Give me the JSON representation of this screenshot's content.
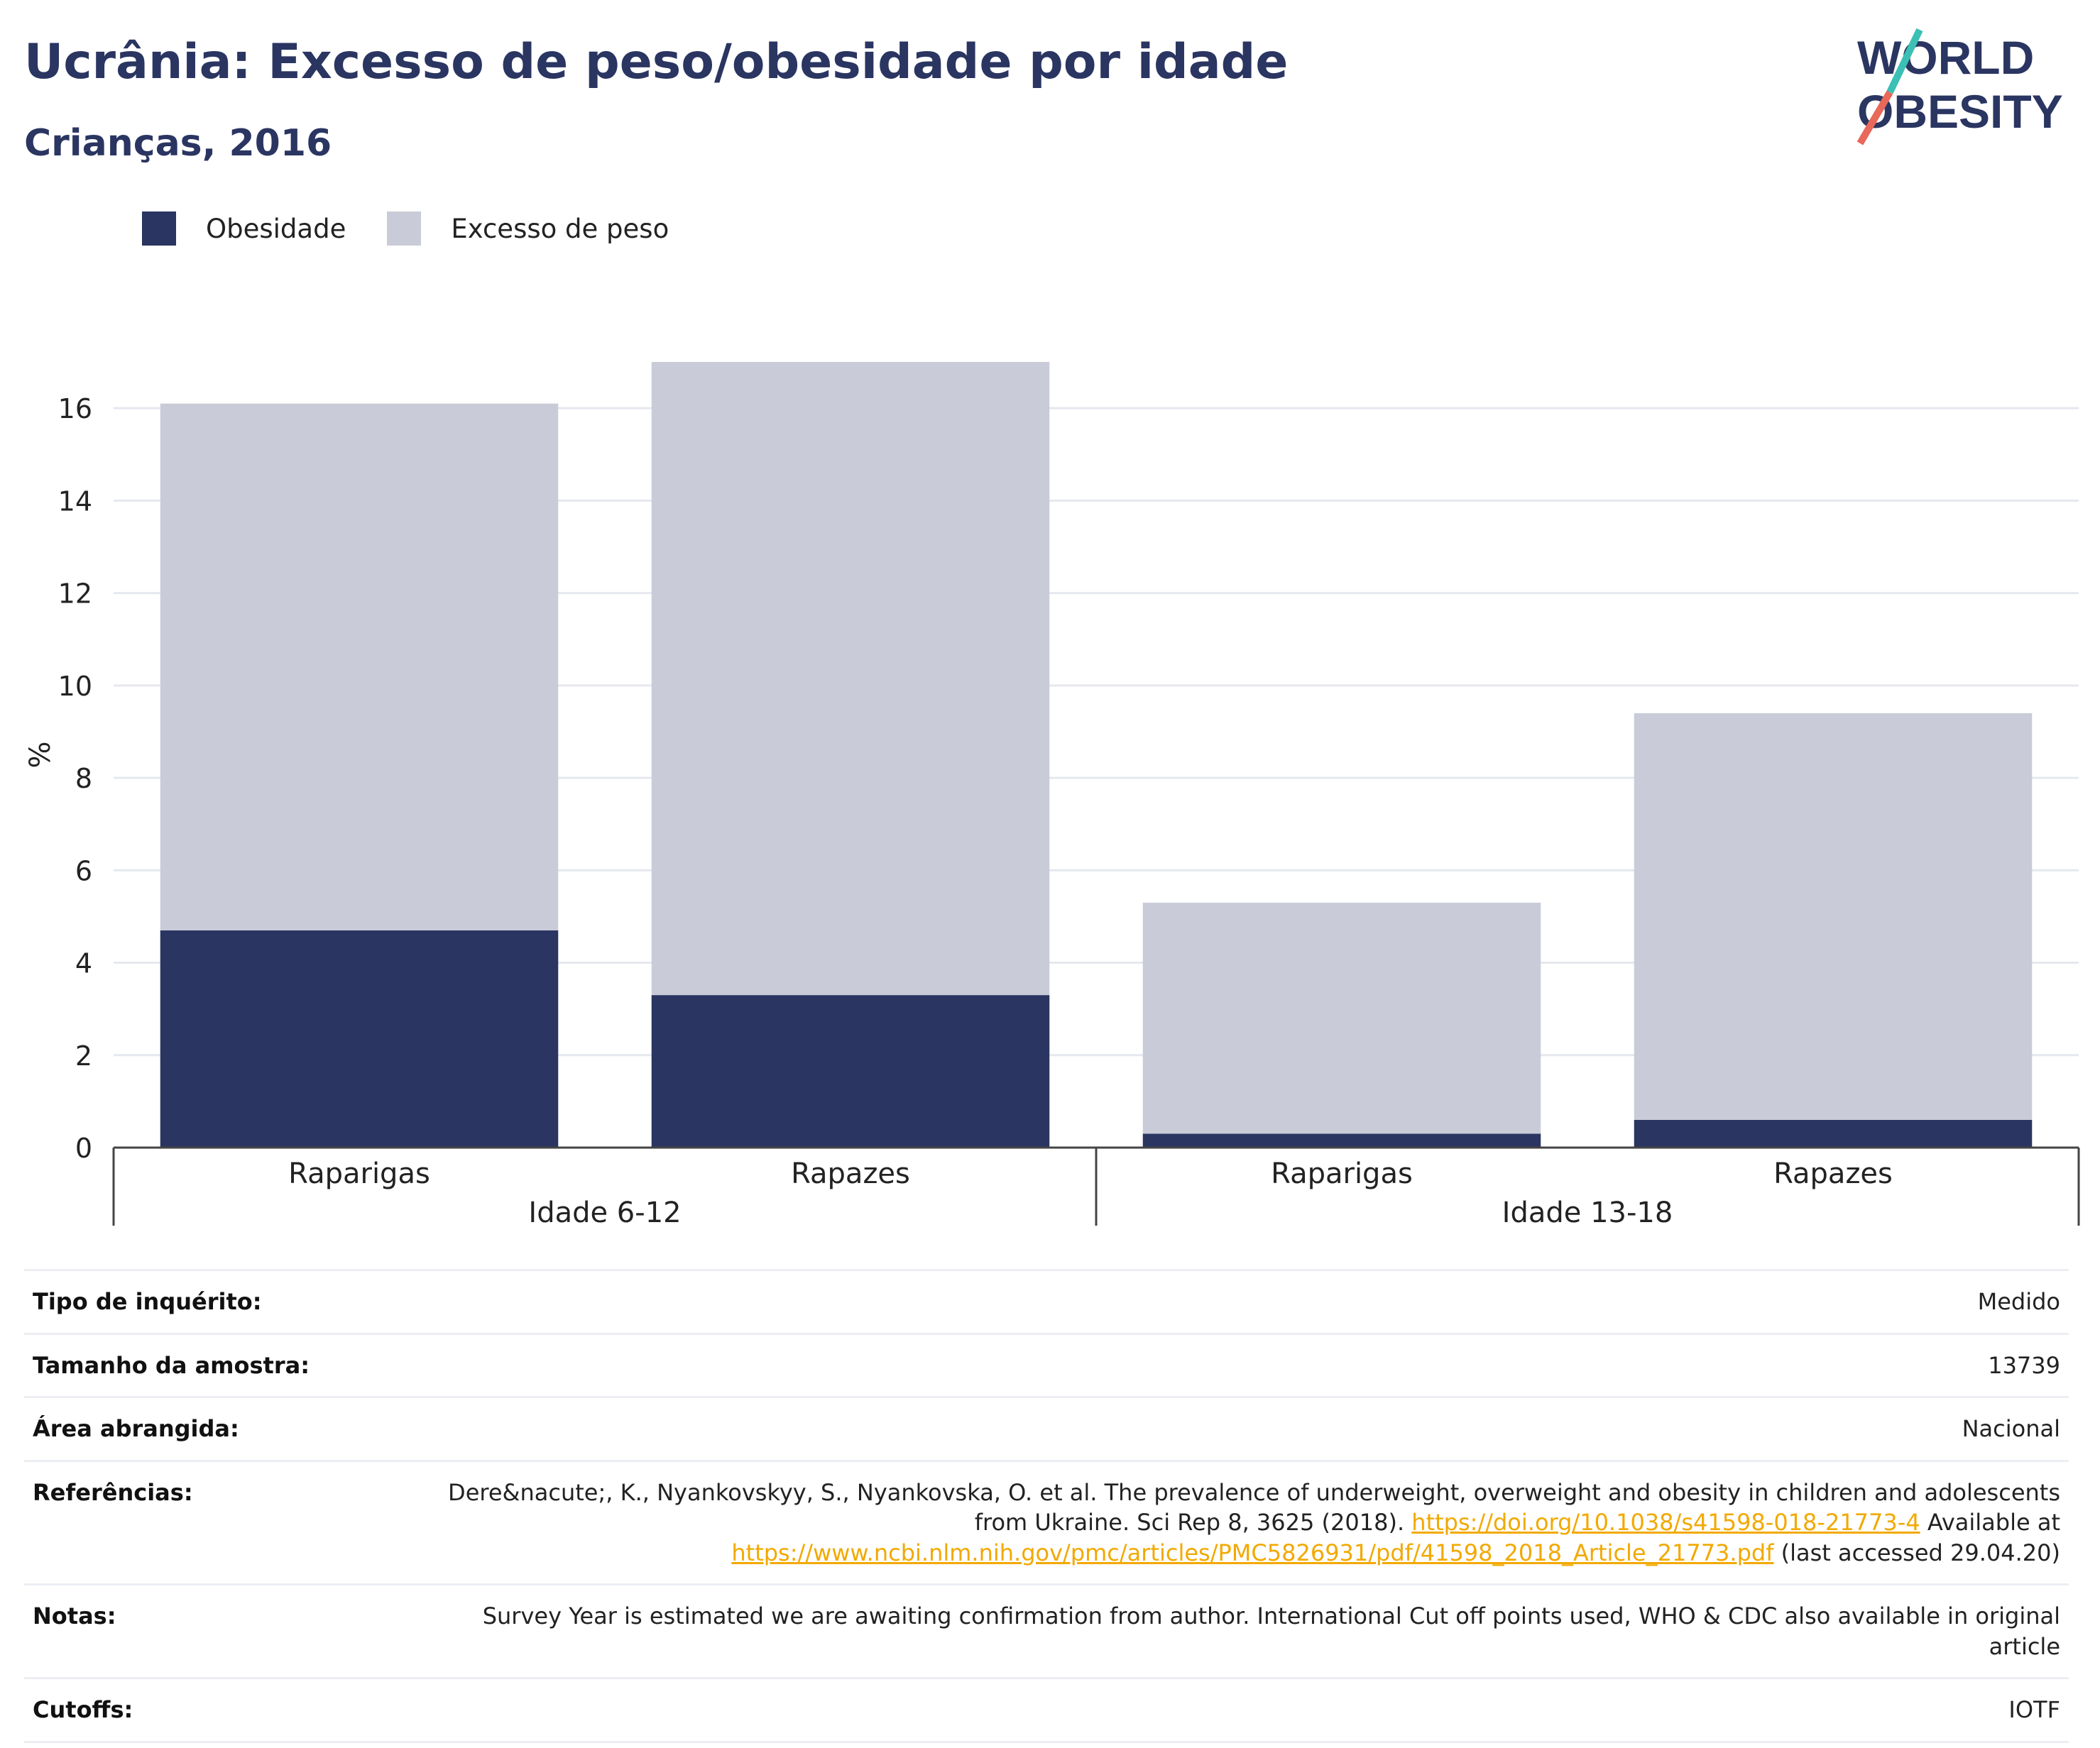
{
  "header": {
    "title": "Ucrânia: Excesso de peso/obesidade por idade",
    "subtitle": "Crianças, 2016"
  },
  "logo": {
    "line1": "WORLD",
    "line2": "OBESITY",
    "colors": {
      "text": "#2a3561",
      "slash_top": "#3cbfb4",
      "slash_bottom": "#e8685a"
    }
  },
  "legend": [
    {
      "label": "Obesidade",
      "color": "#2a3561"
    },
    {
      "label": "Excesso de peso",
      "color": "#c9ccd8"
    }
  ],
  "chart_data": {
    "type": "bar",
    "stacked": true,
    "ylabel": "%",
    "ylim": [
      0,
      17
    ],
    "yticks": [
      0,
      2,
      4,
      6,
      8,
      10,
      12,
      14,
      16
    ],
    "grid": true,
    "legend_position": "top-left",
    "groups": [
      {
        "label": "Idade 6-12",
        "categories": [
          "Raparigas",
          "Rapazes"
        ]
      },
      {
        "label": "Idade 13-18",
        "categories": [
          "Raparigas",
          "Rapazes"
        ]
      }
    ],
    "categories": [
      "Raparigas",
      "Rapazes",
      "Raparigas",
      "Rapazes"
    ],
    "series": [
      {
        "name": "Obesidade",
        "color": "#2a3561",
        "values": [
          4.7,
          3.3,
          0.3,
          0.6
        ]
      },
      {
        "name": "Excesso de peso",
        "color": "#c9ccd8",
        "values": [
          11.4,
          13.7,
          5.0,
          8.8
        ]
      }
    ]
  },
  "info": {
    "survey_type_label": "Tipo de inquérito:",
    "survey_type": "Medido",
    "sample_size_label": "Tamanho da amostra:",
    "sample_size": "13739",
    "area_label": "Área abrangida:",
    "area": "Nacional",
    "references_label": "Referências:",
    "ref_text1": "Dere&nacute;, K., Nyankovskyy, S., Nyankovska, O. et al. The prevalence of underweight, overweight and obesity in children and adolescents from Ukraine. Sci Rep 8, 3625 (2018).",
    "ref_link1": "https://doi.org/10.1038/s41598-018-21773-4",
    "ref_text2": "Available at",
    "ref_link2": "https://www.ncbi.nlm.nih.gov/pmc/articles/PMC5826931/pdf/41598_2018_Article_21773.pdf",
    "ref_text3": "(last accessed 29.04.20)",
    "notes_label": "Notas:",
    "notes": "Survey Year is estimated we are awaiting confirmation from author. International Cut off points used, WHO & CDC also available in original article",
    "cutoffs_label": "Cutoffs:",
    "cutoffs": "IOTF"
  }
}
